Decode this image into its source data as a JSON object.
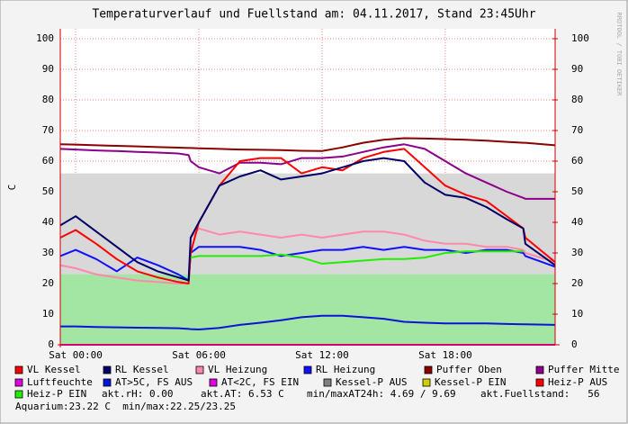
{
  "chart_data": {
    "type": "line",
    "title": "Temperaturverlauf und Fuellstand am: 04.11.2017, Stand 23:45Uhr",
    "y_label": "C",
    "watermark": "RRDTOOL / TOBI OETIKER",
    "x": [
      -0.75,
      0,
      1,
      2,
      3,
      4,
      5,
      5.5,
      5.6,
      6,
      7,
      8,
      9,
      10,
      11,
      12,
      13,
      14,
      15,
      16,
      17,
      18,
      19,
      20,
      21,
      21.8,
      21.9,
      23.35
    ],
    "xlim": [
      -0.75,
      23.35
    ],
    "xticks": [
      {
        "value": 0,
        "label": "Sat 00:00"
      },
      {
        "value": 6,
        "label": "Sat 06:00"
      },
      {
        "value": 12,
        "label": "Sat 12:00"
      },
      {
        "value": 18,
        "label": "Sat 18:00"
      }
    ],
    "ylim": [
      0,
      100
    ],
    "yticks": [
      0,
      10,
      20,
      30,
      40,
      50,
      60,
      70,
      80,
      90,
      100
    ],
    "y2lim": [
      0,
      100
    ],
    "y2ticks": [
      0,
      10,
      20,
      30,
      40,
      50,
      60,
      70,
      80,
      90,
      100
    ],
    "grid": true,
    "series": [
      {
        "style": "area",
        "color": "#d8d8d8",
        "values": [
          56,
          56,
          56,
          56,
          56,
          56,
          56,
          56,
          56,
          56,
          56,
          56,
          56,
          56,
          56,
          56,
          56,
          56,
          56,
          56,
          56,
          56,
          56,
          56,
          56,
          56,
          56,
          56
        ]
      },
      {
        "style": "area",
        "color": "#a3e6a3",
        "values": [
          23,
          23,
          23,
          23,
          23,
          23,
          23,
          23,
          23,
          23,
          23,
          23,
          23,
          23,
          23,
          23,
          23,
          23,
          23,
          23,
          23,
          23,
          23,
          23,
          23,
          23,
          23,
          23
        ]
      },
      {
        "style": "line",
        "color": "#e000e0",
        "values": [
          0,
          0,
          0,
          0,
          0,
          0,
          0,
          0,
          0,
          0,
          0,
          0,
          0,
          0,
          0,
          0,
          0,
          0,
          0,
          0,
          0,
          0,
          0,
          0,
          0,
          0,
          0,
          0
        ]
      },
      {
        "style": "line",
        "color": "#0a14d8",
        "values": [
          6,
          6,
          5.8,
          5.7,
          5.6,
          5.5,
          5.4,
          5.2,
          5.1,
          5,
          5.5,
          6.5,
          7.2,
          8,
          9,
          9.5,
          9.5,
          9,
          8.5,
          7.5,
          7.2,
          7,
          7,
          7,
          6.8,
          6.7,
          6.7,
          6.5
        ]
      },
      {
        "style": "line",
        "color": "#8b0000",
        "values": [
          65.5,
          65.4,
          65.2,
          65,
          64.8,
          64.6,
          64.4,
          64.3,
          64.3,
          64.2,
          64,
          63.8,
          63.7,
          63.6,
          63.4,
          63.3,
          64.5,
          66,
          67,
          67.5,
          67.4,
          67.2,
          67,
          66.7,
          66.3,
          66,
          66,
          65.2
        ]
      },
      {
        "style": "line",
        "color": "#8b008b",
        "values": [
          64,
          63.8,
          63.5,
          63.3,
          63,
          62.8,
          62.5,
          62,
          60,
          58,
          56,
          59.5,
          59.5,
          59,
          61,
          61,
          61.5,
          63,
          64.5,
          65.5,
          64,
          60,
          56,
          53,
          50,
          48,
          47.7,
          47.7
        ]
      },
      {
        "style": "line",
        "color": "#ff88aa",
        "values": [
          26,
          25,
          23,
          22,
          21,
          20.5,
          20,
          20,
          35,
          38,
          36,
          37,
          36,
          35,
          36,
          35,
          36,
          37,
          37,
          36,
          34,
          33,
          33,
          32,
          32,
          31,
          30,
          27
        ]
      },
      {
        "style": "line",
        "color": "#1010ff",
        "values": [
          29,
          31,
          28,
          24,
          28.5,
          26,
          23,
          21,
          30,
          32,
          32,
          32,
          31,
          29,
          30,
          31,
          31,
          32,
          31,
          32,
          31,
          31,
          30,
          31,
          31,
          30,
          29,
          25.5
        ]
      },
      {
        "style": "line",
        "color": "#ff0000",
        "values": [
          35,
          37.5,
          33,
          28,
          24,
          22,
          20.5,
          20,
          30,
          40,
          52,
          60,
          61,
          61,
          56,
          58,
          57,
          61,
          63,
          64,
          58,
          52,
          49,
          47,
          42,
          38,
          35,
          27
        ]
      },
      {
        "style": "line",
        "color": "#000066",
        "values": [
          39,
          42,
          37,
          32,
          27,
          24,
          22,
          21,
          35,
          40,
          52,
          55,
          57,
          54,
          55,
          56,
          58,
          60,
          61,
          60,
          53,
          49,
          48,
          45,
          41,
          38,
          33,
          26
        ]
      },
      {
        "style": "line",
        "color": "#22ee00",
        "values": [
          null,
          null,
          null,
          null,
          null,
          null,
          null,
          null,
          28.5,
          29,
          29,
          29,
          29,
          29.5,
          28.5,
          26.5,
          27,
          27.5,
          28,
          28,
          28.5,
          30,
          30.5,
          30.5,
          30.5,
          30.5,
          null,
          null
        ]
      }
    ],
    "legend": [
      {
        "name": "VL Kessel",
        "color": "#ff0000"
      },
      {
        "name": "RL Kessel",
        "color": "#000066"
      },
      {
        "name": "VL Heizung",
        "color": "#ff88aa"
      },
      {
        "name": "RL Heizung",
        "color": "#1010ff"
      },
      {
        "name": "Puffer Oben",
        "color": "#8b0000"
      },
      {
        "name": "Puffer Mitte",
        "color": "#8b008b"
      },
      {
        "name": "Luftfeuchte",
        "color": "#e000e0"
      },
      {
        "name": "AT>5C, FS AUS",
        "color": "#0a14d8"
      },
      {
        "name": "AT<2C, FS EIN",
        "color": "#e000e0"
      },
      {
        "name": "Kessel-P AUS",
        "color": "#808080"
      },
      {
        "name": "Kessel-P EIN",
        "color": "#d0d000"
      },
      {
        "name": "Heiz-P AUS",
        "color": "#ff0000"
      },
      {
        "name": "Heiz-P EIN",
        "color": "#22ee00"
      }
    ],
    "annotations": [
      "akt.rH: 0.00",
      "akt.AT: 6.53 C",
      "min/maxAT24h: 4.69 / 9.69",
      "akt.Fuellstand:   56",
      "Aquarium:23.22 C  min/max:22.25/23.25"
    ]
  }
}
